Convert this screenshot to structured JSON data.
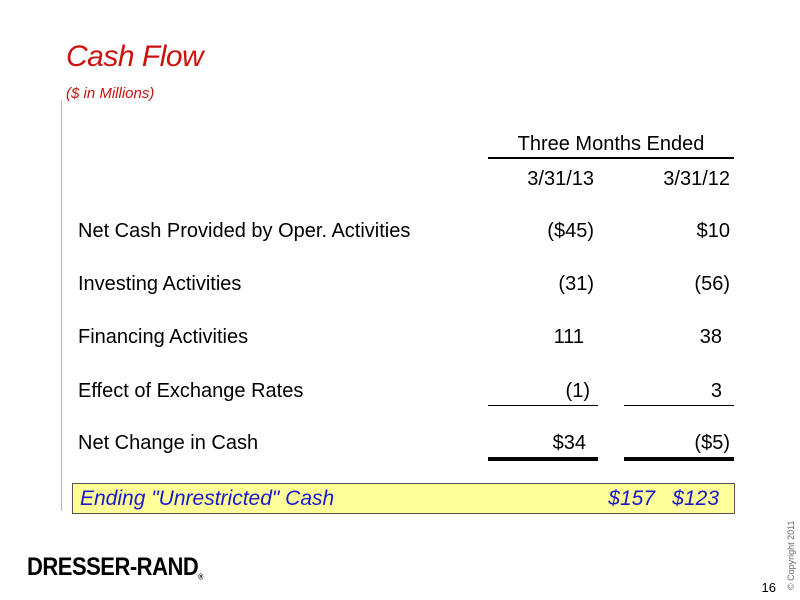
{
  "title": "Cash Flow",
  "subtitle": "($ in Millions)",
  "header": {
    "period": "Three Months Ended",
    "date_1": "3/31/13",
    "date_2": "3/31/12"
  },
  "rows": [
    {
      "label": "Net Cash Provided by Oper. Activities",
      "v1": "($45)",
      "v2": "$10"
    },
    {
      "label": "Investing Activities",
      "v1": "(31)",
      "v2": "(56)"
    },
    {
      "label": "Financing Activities",
      "v1": "111",
      "v2": "38"
    },
    {
      "label": "Effect of Exchange Rates",
      "v1": "(1)",
      "v2": "3"
    },
    {
      "label": "Net Change in Cash",
      "v1": "$34",
      "v2": "($5)"
    }
  ],
  "ending": {
    "label": "Ending \"Unrestricted\" Cash",
    "v1": "$157",
    "v2": "$123"
  },
  "logo": "DRESSER-RAND",
  "logo_mark": "®",
  "copyright": "© Copyright 2011",
  "page_number": "16",
  "colors": {
    "title": "#cc1111",
    "highlight_bg": "#ffff99",
    "highlight_text": "#1a1acc"
  }
}
